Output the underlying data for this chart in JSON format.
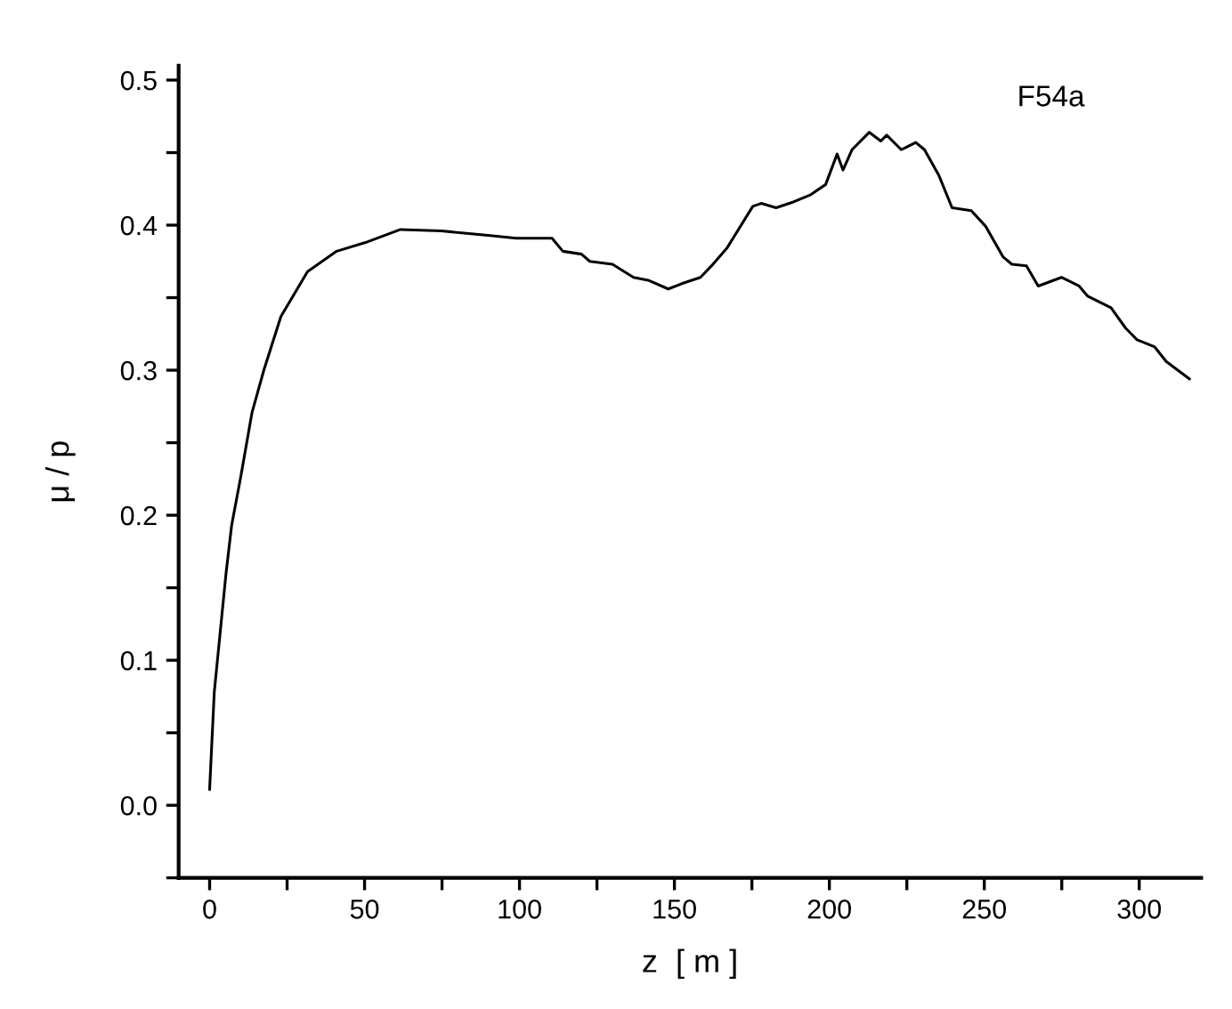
{
  "chart_data": {
    "type": "line",
    "xlabel": "z  [ m ]",
    "ylabel": "μ / p",
    "annotations": [
      "F54a"
    ],
    "x": [
      0,
      1.5,
      3.4,
      5.3,
      7.1,
      10,
      13.7,
      17.5,
      23,
      31.6,
      41,
      50.3,
      61.6,
      74.8,
      89.8,
      99,
      110.5,
      114,
      120,
      122.7,
      130,
      136.8,
      141.5,
      148,
      152.8,
      158.4,
      162,
      166.9,
      175.3,
      178,
      182.8,
      188.4,
      194,
      198.8,
      202.5,
      204.4,
      207.3,
      212.9,
      216.6,
      218.5,
      223.2,
      227.9,
      230.7,
      235.4,
      239.6,
      245.8,
      250.5,
      256.1,
      258.9,
      263.6,
      267.4,
      274.9,
      280.6,
      283.4,
      290.9,
      295.6,
      299.3,
      305,
      308.7,
      316.2
    ],
    "series": [
      {
        "color": "#000000",
        "values": [
          0.011,
          0.078,
          0.119,
          0.16,
          0.193,
          0.226,
          0.271,
          0.3,
          0.337,
          0.368,
          0.382,
          0.388,
          0.397,
          0.396,
          0.393,
          0.391,
          0.391,
          0.382,
          0.38,
          0.375,
          0.373,
          0.364,
          0.362,
          0.356,
          0.36,
          0.364,
          0.372,
          0.384,
          0.413,
          0.415,
          0.412,
          0.416,
          0.421,
          0.428,
          0.449,
          0.438,
          0.452,
          0.464,
          0.458,
          0.462,
          0.452,
          0.457,
          0.452,
          0.434,
          0.412,
          0.41,
          0.399,
          0.378,
          0.373,
          0.372,
          0.358,
          0.364,
          0.358,
          0.351,
          0.343,
          0.329,
          0.321,
          0.316,
          0.306,
          0.294
        ]
      }
    ],
    "xlim": [
      -10,
      320
    ],
    "ylim": [
      -0.05,
      0.51
    ],
    "xticks": [
      0,
      {
        "value": 25,
        "label": null
      },
      50,
      {
        "value": 75,
        "label": null
      },
      100,
      {
        "value": 125,
        "label": null
      },
      150,
      {
        "value": 175,
        "label": null
      },
      200,
      {
        "value": 225,
        "label": null
      },
      250,
      {
        "value": 275,
        "label": null
      },
      300
    ],
    "yticks": [
      {
        "value": -0.05,
        "label": null
      },
      {
        "value": 0.0,
        "label": "0.0"
      },
      {
        "value": 0.05,
        "label": null
      },
      0.1,
      {
        "value": 0.15,
        "label": null
      },
      0.2,
      {
        "value": 0.25,
        "label": null
      },
      0.3,
      {
        "value": 0.35,
        "label": null
      },
      0.4,
      {
        "value": 0.45,
        "label": null
      },
      0.5
    ],
    "grid": false,
    "legend": false,
    "marker": "none",
    "line_style": "solid"
  }
}
